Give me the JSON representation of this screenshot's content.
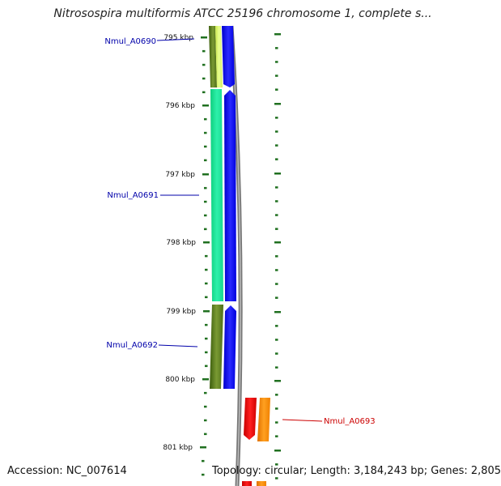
{
  "title": "Nitrosospira multiformis ATCC 25196 chromosome 1, complete s...",
  "accession": "Accession: NC_007614",
  "summary": "Topology: circular; Length: 3,184,243 bp; Genes: 2,805",
  "ticks": [
    "795 kbp",
    "796 kbp",
    "797 kbp",
    "798 kbp",
    "799 kbp",
    "800 kbp",
    "801 kbp"
  ],
  "genes": [
    {
      "label": "Nmul_A0690",
      "color": "#0000aa"
    },
    {
      "label": "Nmul_A0691",
      "color": "#0000aa"
    },
    {
      "label": "Nmul_A0692",
      "color": "#0000aa"
    },
    {
      "label": "Nmul_A0693",
      "color": "#cc0000"
    }
  ],
  "colors": {
    "tick_green": "#207020",
    "cds_blue": "#0000ee",
    "gene_green_teal": "#22e8a0",
    "gene_olive": "#557a1a",
    "gene_red": "#ee0000",
    "gene_orange": "#ff8c00",
    "backbone_gray": "#888888"
  }
}
